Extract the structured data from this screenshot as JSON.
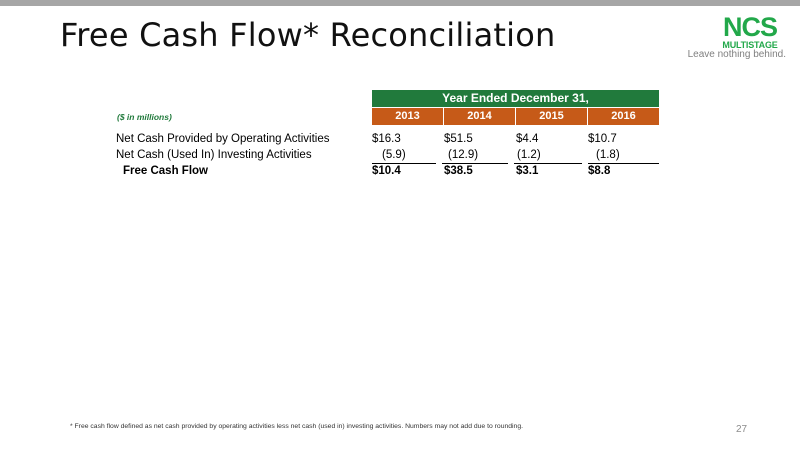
{
  "slide": {
    "title": "Free Cash Flow* Reconciliation",
    "page_number": "27",
    "footnote": "*  Free cash flow defined as net cash provided by operating activities less net cash (used in) investing activities. Numbers may not add due to rounding."
  },
  "logo": {
    "name": "NCS",
    "subname": "MULTISTAGE",
    "tagline": "Leave nothing behind.",
    "color": "#22a84a"
  },
  "table": {
    "group_header": "Year Ended December 31,",
    "units_label": "($ in millions)",
    "years": [
      "2013",
      "2014",
      "2015",
      "2016"
    ],
    "rows": [
      {
        "label": "Net Cash Provided by Operating Activities",
        "values": [
          "$16.3",
          "$51.5",
          "$4.4",
          "$10.7"
        ]
      },
      {
        "label": "Net Cash (Used In) Investing Activities",
        "values": [
          "(5.9)",
          "(12.9)",
          "(1.2)",
          "(1.8)"
        ]
      },
      {
        "label": "Free Cash Flow",
        "values": [
          "$10.4",
          "$38.5",
          "$3.1",
          "$8.8"
        ]
      }
    ],
    "colors": {
      "group_header_bg": "#217a3c",
      "year_row_bg": "#c65a18"
    }
  }
}
